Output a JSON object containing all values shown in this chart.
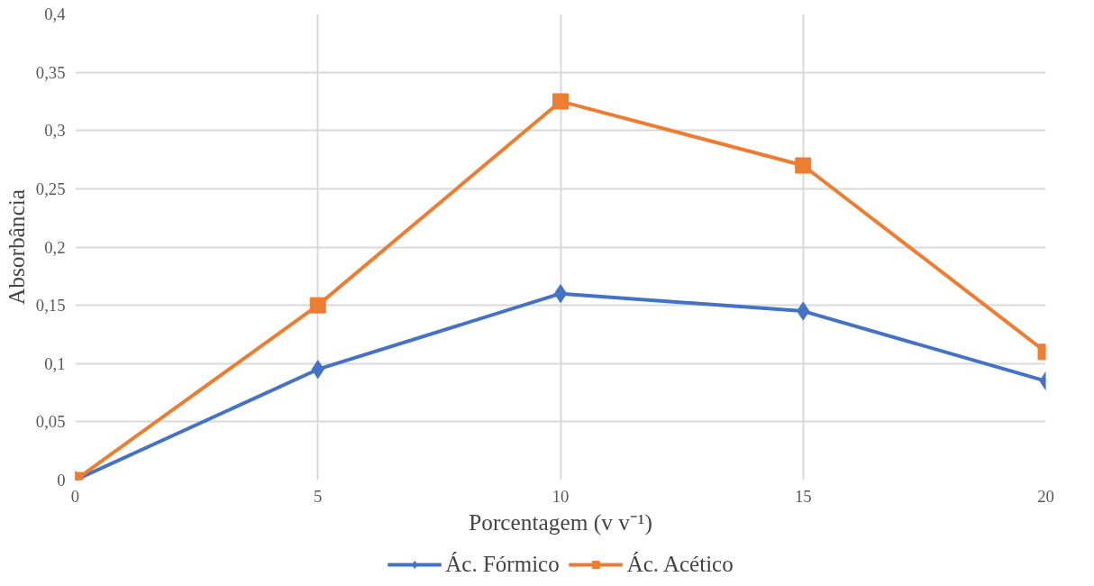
{
  "chart_data": {
    "type": "line",
    "xlabel": "Porcentagem (v v⁻¹)",
    "ylabel": "Absorbância",
    "x": [
      0,
      5,
      10,
      15,
      20
    ],
    "series": [
      {
        "name": "Ác. Fórmico",
        "color": "#4472c4",
        "marker": "diamond",
        "values": [
          0,
          0.095,
          0.16,
          0.145,
          0.085
        ]
      },
      {
        "name": "Ác. Acético",
        "color": "#ed7d31",
        "marker": "square",
        "values": [
          0,
          0.15,
          0.325,
          0.27,
          0.11
        ]
      }
    ],
    "xlim": [
      0,
      20
    ],
    "xticks": [
      0,
      5,
      10,
      15,
      20
    ],
    "ylim": [
      0,
      0.4
    ],
    "yticks": [
      0,
      {
        "value": 0.05,
        "label": "0,05"
      },
      {
        "value": 0.1,
        "label": "0,1"
      },
      {
        "value": 0.15,
        "label": "0,15"
      },
      {
        "value": 0.2,
        "label": "0,2"
      },
      {
        "value": 0.25,
        "label": "0,25"
      },
      {
        "value": 0.3,
        "label": "0,3"
      },
      {
        "value": 0.35,
        "label": "0,35"
      },
      {
        "value": 0.4,
        "label": "0,4"
      }
    ],
    "grid": true,
    "legend": "bottom",
    "line_style": "solid"
  }
}
